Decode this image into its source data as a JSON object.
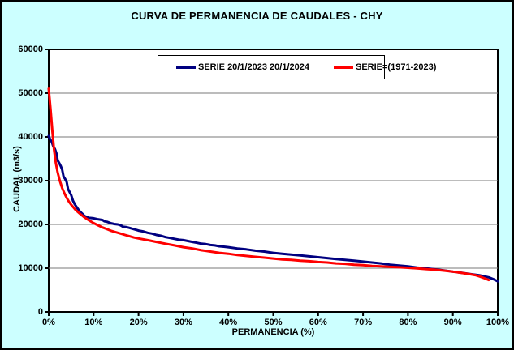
{
  "window": {
    "title": "CURVA DE PERMANENCIA DE CAUDALES - CHY"
  },
  "colors": {
    "background": "#CCFFFF",
    "plot_background": "#FFFFFF",
    "grid": "#7a7a7a",
    "axis": "#000000",
    "series_blue": "#000080",
    "series_red": "#FF0000"
  },
  "chart_data": {
    "type": "line",
    "title": "CURVA DE PERMANENCIA DE CAUDALES - CHY",
    "xlabel": "PERMANENCIA (%)",
    "ylabel": "CAUDAL (m3/s)",
    "xlim": [
      0,
      100
    ],
    "ylim": [
      0,
      60000
    ],
    "x_tick_labels": [
      "0%",
      "10%",
      "20%",
      "30%",
      "40%",
      "50%",
      "60%",
      "70%",
      "80%",
      "90%",
      "100%"
    ],
    "y_ticks": [
      0,
      10000,
      20000,
      30000,
      40000,
      50000,
      60000
    ],
    "grid": "horizontal",
    "legend_position": "top-center",
    "series": [
      {
        "name": "SERIE 20/1/2023 20/1/2024",
        "color": "#000080",
        "points": [
          [
            0,
            40200
          ],
          [
            0.3,
            39500
          ],
          [
            0.7,
            38800
          ],
          [
            1,
            37900
          ],
          [
            1.4,
            37200
          ],
          [
            1.7,
            36300
          ],
          [
            2,
            34600
          ],
          [
            2.4,
            33900
          ],
          [
            2.7,
            33300
          ],
          [
            3,
            32500
          ],
          [
            3.3,
            31000
          ],
          [
            3.7,
            30300
          ],
          [
            4,
            29700
          ],
          [
            4.3,
            28100
          ],
          [
            4.7,
            27300
          ],
          [
            5,
            26700
          ],
          [
            5.4,
            25400
          ],
          [
            5.8,
            24600
          ],
          [
            6.2,
            24000
          ],
          [
            6.6,
            23400
          ],
          [
            7,
            22900
          ],
          [
            7.5,
            22400
          ],
          [
            8,
            21900
          ],
          [
            8.5,
            21700
          ],
          [
            9,
            21500
          ],
          [
            10,
            21400
          ],
          [
            10.8,
            21200
          ],
          [
            11.5,
            21100
          ],
          [
            12,
            21000
          ],
          [
            12.4,
            20700
          ],
          [
            13,
            20600
          ],
          [
            13.8,
            20300
          ],
          [
            14.6,
            20100
          ],
          [
            15.4,
            20000
          ],
          [
            16,
            19800
          ],
          [
            16.5,
            19500
          ],
          [
            17.2,
            19400
          ],
          [
            18,
            19200
          ],
          [
            19,
            18900
          ],
          [
            20,
            18600
          ],
          [
            21,
            18400
          ],
          [
            22,
            18100
          ],
          [
            23,
            17900
          ],
          [
            24,
            17600
          ],
          [
            25,
            17400
          ],
          [
            26,
            17100
          ],
          [
            27,
            16900
          ],
          [
            28,
            16700
          ],
          [
            29,
            16500
          ],
          [
            30,
            16400
          ],
          [
            31,
            16200
          ],
          [
            32,
            16000
          ],
          [
            33,
            15800
          ],
          [
            34,
            15600
          ],
          [
            35,
            15500
          ],
          [
            36,
            15300
          ],
          [
            37,
            15200
          ],
          [
            38,
            15000
          ],
          [
            39,
            14900
          ],
          [
            40,
            14800
          ],
          [
            42,
            14500
          ],
          [
            44,
            14300
          ],
          [
            46,
            14000
          ],
          [
            48,
            13800
          ],
          [
            50,
            13500
          ],
          [
            52,
            13300
          ],
          [
            54,
            13100
          ],
          [
            56,
            12900
          ],
          [
            58,
            12700
          ],
          [
            60,
            12500
          ],
          [
            62,
            12300
          ],
          [
            64,
            12100
          ],
          [
            66,
            11900
          ],
          [
            68,
            11700
          ],
          [
            70,
            11500
          ],
          [
            72,
            11300
          ],
          [
            74,
            11100
          ],
          [
            76,
            10800
          ],
          [
            78,
            10600
          ],
          [
            80,
            10400
          ],
          [
            82,
            10150
          ],
          [
            84,
            9950
          ],
          [
            86,
            9750
          ],
          [
            88,
            9500
          ],
          [
            90,
            9200
          ],
          [
            92,
            8950
          ],
          [
            94,
            8650
          ],
          [
            96,
            8350
          ],
          [
            98,
            7900
          ],
          [
            99,
            7500
          ],
          [
            100,
            7000
          ]
        ]
      },
      {
        "name": "SERIE=(1971-2023)",
        "color": "#FF0000",
        "points": [
          [
            0,
            51000
          ],
          [
            0.4,
            46500
          ],
          [
            0.8,
            41500
          ],
          [
            1.2,
            37000
          ],
          [
            1.6,
            34000
          ],
          [
            2,
            31800
          ],
          [
            2.5,
            29900
          ],
          [
            3,
            28300
          ],
          [
            3.5,
            27100
          ],
          [
            4,
            26100
          ],
          [
            4.5,
            25200
          ],
          [
            5,
            24500
          ],
          [
            6,
            23300
          ],
          [
            7,
            22400
          ],
          [
            8,
            21600
          ],
          [
            9,
            20900
          ],
          [
            10,
            20300
          ],
          [
            11,
            19800
          ],
          [
            12,
            19300
          ],
          [
            13,
            18900
          ],
          [
            14,
            18500
          ],
          [
            15,
            18200
          ],
          [
            16,
            17900
          ],
          [
            17,
            17600
          ],
          [
            18,
            17300
          ],
          [
            19,
            17000
          ],
          [
            20,
            16800
          ],
          [
            22,
            16400
          ],
          [
            24,
            16000
          ],
          [
            26,
            15600
          ],
          [
            28,
            15200
          ],
          [
            30,
            14800
          ],
          [
            32,
            14500
          ],
          [
            34,
            14100
          ],
          [
            36,
            13800
          ],
          [
            38,
            13500
          ],
          [
            40,
            13300
          ],
          [
            42,
            13000
          ],
          [
            44,
            12800
          ],
          [
            46,
            12600
          ],
          [
            48,
            12400
          ],
          [
            50,
            12200
          ],
          [
            52,
            12000
          ],
          [
            54,
            11900
          ],
          [
            56,
            11700
          ],
          [
            58,
            11600
          ],
          [
            60,
            11400
          ],
          [
            62,
            11300
          ],
          [
            64,
            11100
          ],
          [
            66,
            11000
          ],
          [
            68,
            10800
          ],
          [
            70,
            10700
          ],
          [
            72,
            10500
          ],
          [
            74,
            10400
          ],
          [
            76,
            10300
          ],
          [
            78,
            10200
          ],
          [
            80,
            10100
          ],
          [
            82,
            9950
          ],
          [
            84,
            9800
          ],
          [
            86,
            9650
          ],
          [
            88,
            9450
          ],
          [
            90,
            9200
          ],
          [
            92,
            8900
          ],
          [
            94,
            8600
          ],
          [
            95,
            8400
          ],
          [
            96,
            8100
          ],
          [
            97,
            7700
          ],
          [
            98,
            7300
          ]
        ]
      }
    ]
  }
}
